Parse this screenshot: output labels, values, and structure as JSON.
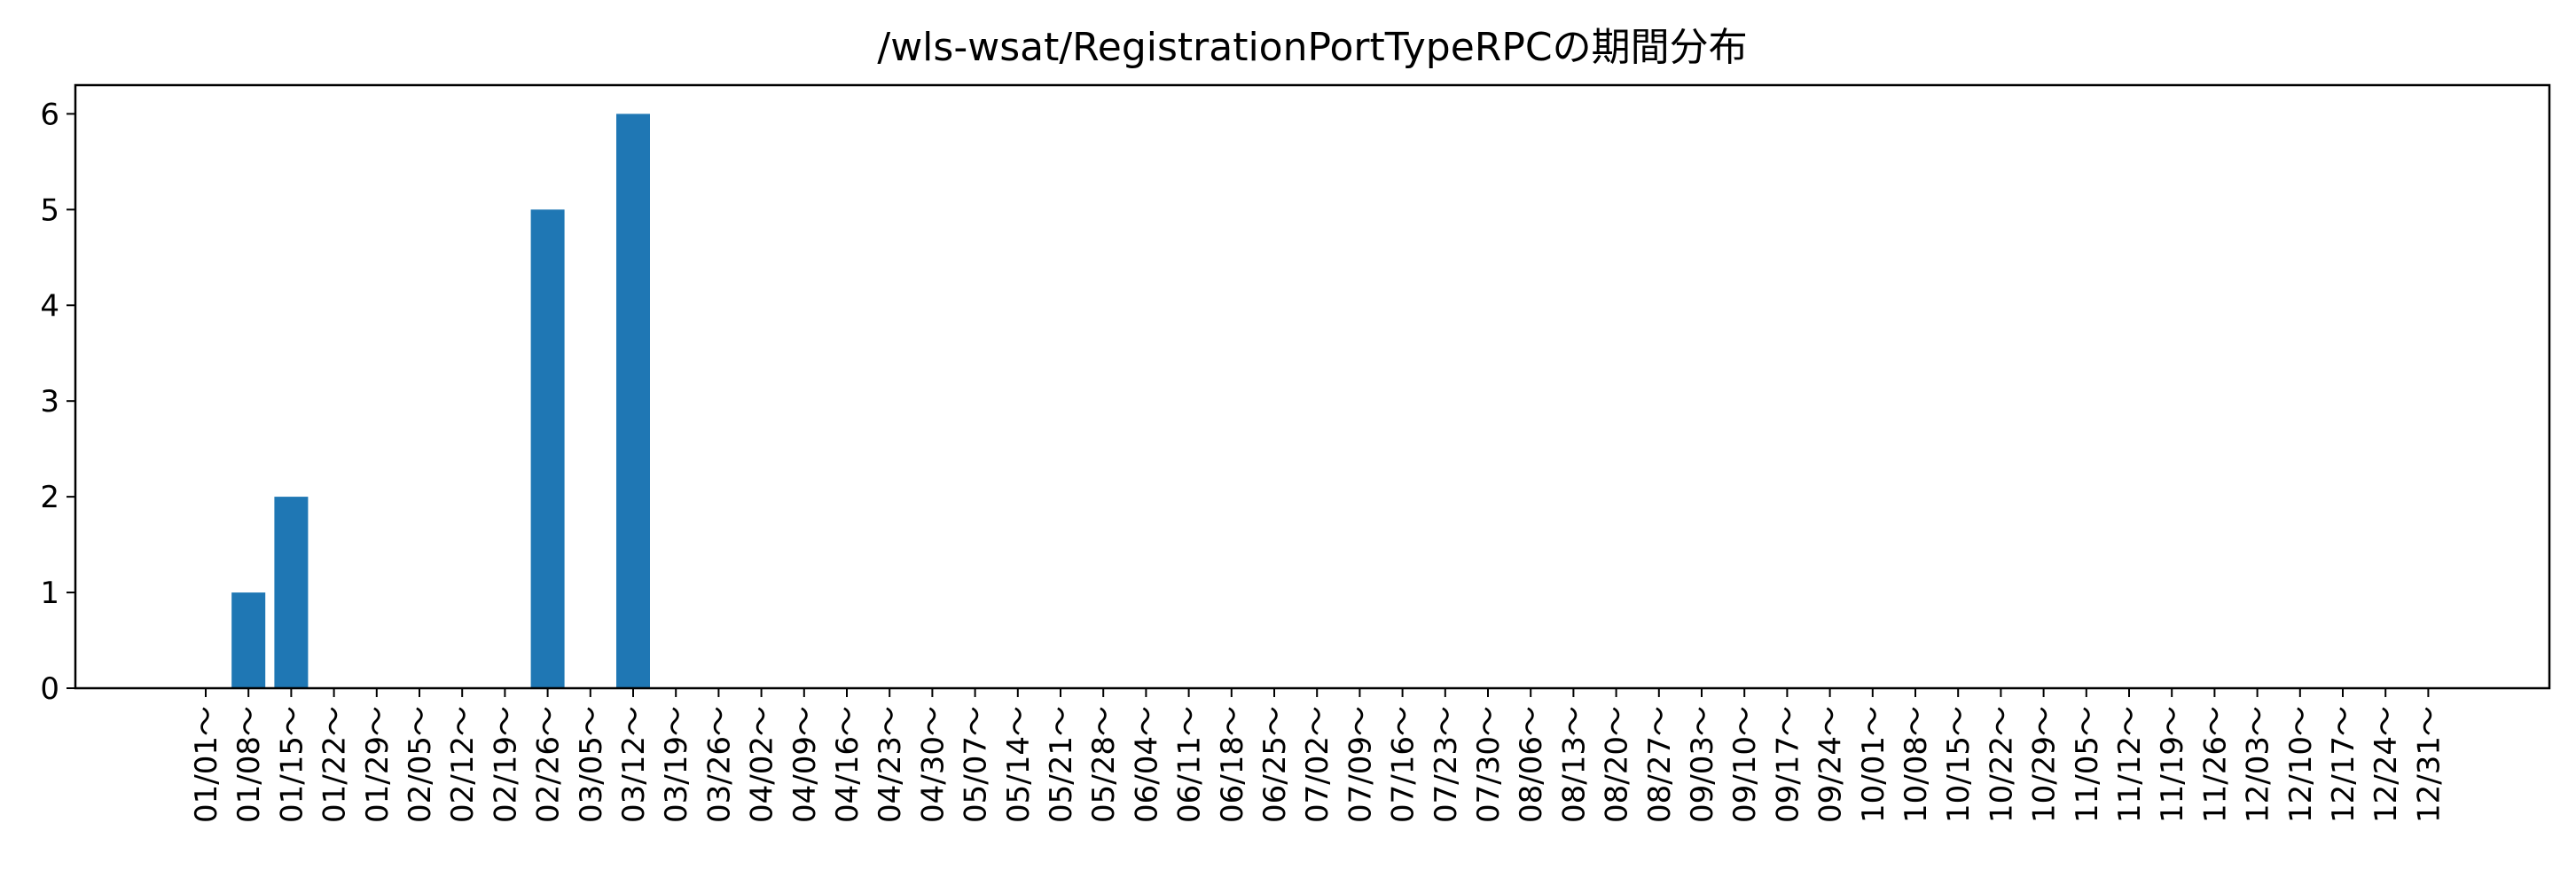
{
  "chart_data": {
    "type": "bar",
    "title": "/wls-wsat/RegistrationPortTypeRPCの期間分布",
    "xlabel": "",
    "ylabel": "",
    "ylim": [
      0,
      6.3
    ],
    "yticks": [
      0,
      1,
      2,
      3,
      4,
      5,
      6
    ],
    "grid": false,
    "legend": "none",
    "bar_color": "#1f77b4",
    "categories": [
      "01/01～",
      "01/08～",
      "01/15～",
      "01/22～",
      "01/29～",
      "02/05～",
      "02/12～",
      "02/19～",
      "02/26～",
      "03/05～",
      "03/12～",
      "03/19～",
      "03/26～",
      "04/02～",
      "04/09～",
      "04/16～",
      "04/23～",
      "04/30～",
      "05/07～",
      "05/14～",
      "05/21～",
      "05/28～",
      "06/04～",
      "06/11～",
      "06/18～",
      "06/25～",
      "07/02～",
      "07/09～",
      "07/16～",
      "07/23～",
      "07/30～",
      "08/06～",
      "08/13～",
      "08/20～",
      "08/27～",
      "09/03～",
      "09/10～",
      "09/17～",
      "09/24～",
      "10/01～",
      "10/08～",
      "10/15～",
      "10/22～",
      "10/29～",
      "11/05～",
      "11/12～",
      "11/19～",
      "11/26～",
      "12/03～",
      "12/10～",
      "12/17～",
      "12/24～",
      "12/31～"
    ],
    "values": [
      0,
      1,
      2,
      0,
      0,
      0,
      0,
      0,
      5,
      0,
      6,
      0,
      0,
      0,
      0,
      0,
      0,
      0,
      0,
      0,
      0,
      0,
      0,
      0,
      0,
      0,
      0,
      0,
      0,
      0,
      0,
      0,
      0,
      0,
      0,
      0,
      0,
      0,
      0,
      0,
      0,
      0,
      0,
      0,
      0,
      0,
      0,
      0,
      0,
      0,
      0,
      0,
      0
    ]
  }
}
